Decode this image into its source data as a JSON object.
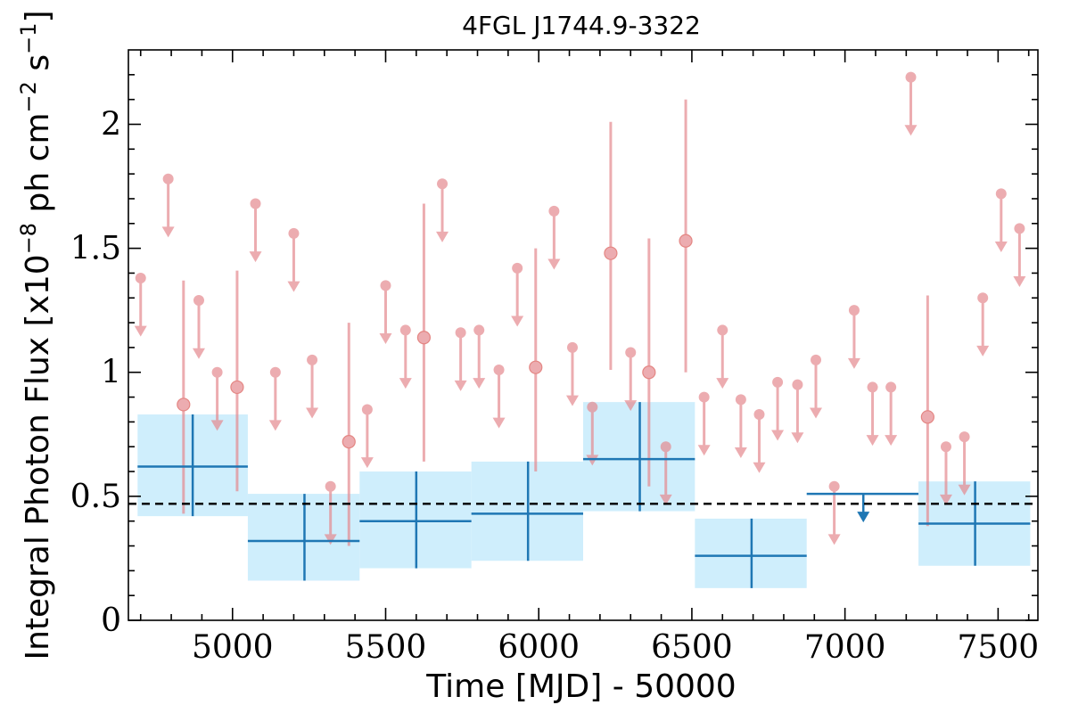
{
  "chart_data": {
    "type": "scatter",
    "title": "4FGL J1744.9-3322",
    "xlabel": "Time [MJD] - 50000",
    "ylabel": "Integral Photon Flux [x10",
    "ylabel_exp1": "−8",
    "ylabel_mid": " ph cm",
    "ylabel_exp2": "−2",
    "ylabel_mid2": " s",
    "ylabel_exp3": "−1",
    "ylabel_end": "]",
    "xlim": [
      4660,
      7630
    ],
    "ylim": [
      0,
      2.3
    ],
    "x_ticks": [
      5000,
      5500,
      6000,
      6500,
      7000,
      7500
    ],
    "y_ticks": [
      0,
      0.5,
      1,
      1.5,
      2
    ],
    "y_tick_labels": [
      "0",
      "0.5",
      "1",
      "1.5",
      "2"
    ],
    "mean_flux": 0.47,
    "series": [
      {
        "style": "short-bin-upper-limits",
        "color": "#e58a8f",
        "points": [
          {
            "x": 4700,
            "y": 1.38
          },
          {
            "x": 4790,
            "y": 1.78
          },
          {
            "x": 4890,
            "y": 1.29
          },
          {
            "x": 4950,
            "y": 1.0
          },
          {
            "x": 5075,
            "y": 1.68
          },
          {
            "x": 5140,
            "y": 1.0
          },
          {
            "x": 5200,
            "y": 1.56
          },
          {
            "x": 5260,
            "y": 1.05
          },
          {
            "x": 5320,
            "y": 0.54
          },
          {
            "x": 5440,
            "y": 0.85
          },
          {
            "x": 5500,
            "y": 1.35
          },
          {
            "x": 5565,
            "y": 1.17
          },
          {
            "x": 5685,
            "y": 1.76
          },
          {
            "x": 5745,
            "y": 1.16
          },
          {
            "x": 5805,
            "y": 1.17
          },
          {
            "x": 5870,
            "y": 1.01
          },
          {
            "x": 5930,
            "y": 1.42
          },
          {
            "x": 6050,
            "y": 1.65
          },
          {
            "x": 6110,
            "y": 1.1
          },
          {
            "x": 6175,
            "y": 0.86
          },
          {
            "x": 6300,
            "y": 1.08
          },
          {
            "x": 6415,
            "y": 0.7
          },
          {
            "x": 6540,
            "y": 0.9
          },
          {
            "x": 6600,
            "y": 1.17
          },
          {
            "x": 6660,
            "y": 0.89
          },
          {
            "x": 6720,
            "y": 0.83
          },
          {
            "x": 6780,
            "y": 0.96
          },
          {
            "x": 6845,
            "y": 0.95
          },
          {
            "x": 6905,
            "y": 1.05
          },
          {
            "x": 6965,
            "y": 0.54
          },
          {
            "x": 7030,
            "y": 1.25
          },
          {
            "x": 7090,
            "y": 0.94
          },
          {
            "x": 7150,
            "y": 0.94
          },
          {
            "x": 7215,
            "y": 2.19
          },
          {
            "x": 7330,
            "y": 0.7
          },
          {
            "x": 7390,
            "y": 0.74
          },
          {
            "x": 7450,
            "y": 1.3
          },
          {
            "x": 7510,
            "y": 1.72
          },
          {
            "x": 7570,
            "y": 1.58
          }
        ]
      },
      {
        "style": "short-bin-detections",
        "color": "#e58a8f",
        "points": [
          {
            "x": 4840,
            "y": 0.87,
            "ylow": 0.43,
            "yhigh": 1.37
          },
          {
            "x": 5015,
            "y": 0.94,
            "ylow": 0.52,
            "yhigh": 1.41
          },
          {
            "x": 5380,
            "y": 0.72,
            "ylow": 0.3,
            "yhigh": 1.2
          },
          {
            "x": 5625,
            "y": 1.14,
            "ylow": 0.64,
            "yhigh": 1.68
          },
          {
            "x": 5990,
            "y": 1.02,
            "ylow": 0.6,
            "yhigh": 1.5
          },
          {
            "x": 6235,
            "y": 1.48,
            "ylow": 1.01,
            "yhigh": 2.01
          },
          {
            "x": 6360,
            "y": 1.0,
            "ylow": 0.54,
            "yhigh": 1.54
          },
          {
            "x": 6480,
            "y": 1.53,
            "ylow": 1.0,
            "yhigh": 2.1
          },
          {
            "x": 7270,
            "y": 0.82,
            "ylow": 0.38,
            "yhigh": 1.31
          }
        ]
      },
      {
        "style": "long-bin-detections",
        "color": "#1f77b4",
        "band_color": "#cfeefc",
        "bins": [
          {
            "x0": 4690,
            "x1": 5050,
            "xc": 4870,
            "y": 0.62,
            "ylow": 0.42,
            "yhigh": 0.83
          },
          {
            "x0": 5050,
            "x1": 5415,
            "xc": 5235,
            "y": 0.32,
            "ylow": 0.16,
            "yhigh": 0.51
          },
          {
            "x0": 5415,
            "x1": 5780,
            "xc": 5600,
            "y": 0.4,
            "ylow": 0.21,
            "yhigh": 0.6
          },
          {
            "x0": 5780,
            "x1": 6145,
            "xc": 5965,
            "y": 0.43,
            "ylow": 0.24,
            "yhigh": 0.64
          },
          {
            "x0": 6145,
            "x1": 6510,
            "xc": 6330,
            "y": 0.65,
            "ylow": 0.44,
            "yhigh": 0.88
          },
          {
            "x0": 6510,
            "x1": 6875,
            "xc": 6695,
            "y": 0.26,
            "ylow": 0.13,
            "yhigh": 0.41
          },
          {
            "x0": 7240,
            "x1": 7605,
            "xc": 7425,
            "y": 0.39,
            "ylow": 0.22,
            "yhigh": 0.56
          }
        ]
      },
      {
        "style": "long-bin-upper-limit",
        "color": "#1f77b4",
        "bins": [
          {
            "x0": 6875,
            "x1": 7240,
            "xc": 7060,
            "y": 0.51
          }
        ]
      }
    ]
  }
}
